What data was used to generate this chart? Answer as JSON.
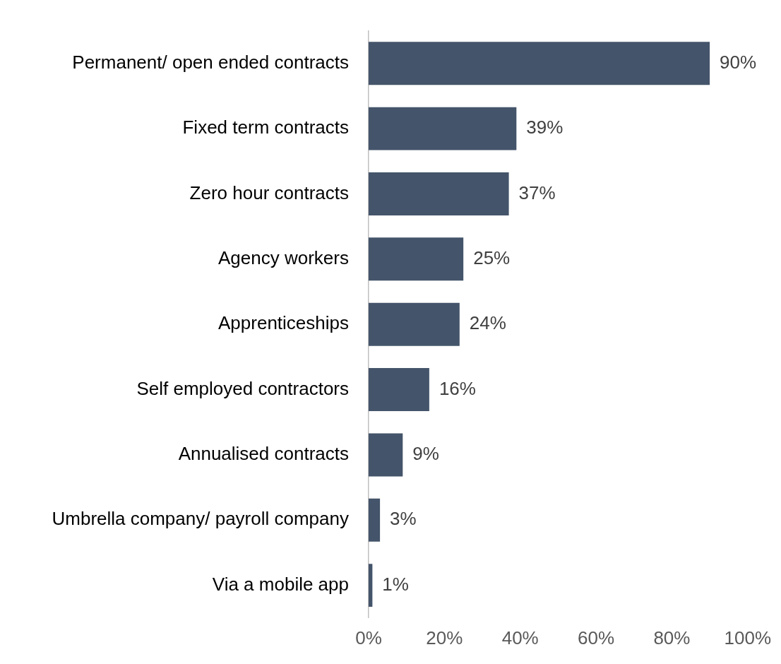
{
  "chart_data": {
    "type": "bar",
    "orientation": "horizontal",
    "categories": [
      "Permanent/ open ended contracts",
      "Fixed term contracts",
      "Zero hour contracts",
      "Agency workers",
      "Apprenticeships",
      "Self employed contractors",
      "Annualised contracts",
      "Umbrella company/ payroll company",
      "Via a mobile app"
    ],
    "values": [
      90,
      39,
      37,
      25,
      24,
      16,
      9,
      3,
      1
    ],
    "value_labels": [
      "90%",
      "39%",
      "37%",
      "25%",
      "24%",
      "16%",
      "9%",
      "3%",
      "1%"
    ],
    "color": "#44546a",
    "xlim": [
      0,
      100
    ],
    "xticks": [
      {
        "value": 0,
        "label": "0%"
      },
      {
        "value": 20,
        "label": "20%"
      },
      {
        "value": 40,
        "label": "40%"
      },
      {
        "value": 60,
        "label": "60%"
      },
      {
        "value": 80,
        "label": "80%"
      },
      {
        "value": 100,
        "label": "100%"
      }
    ],
    "grid": false,
    "legend": false
  }
}
